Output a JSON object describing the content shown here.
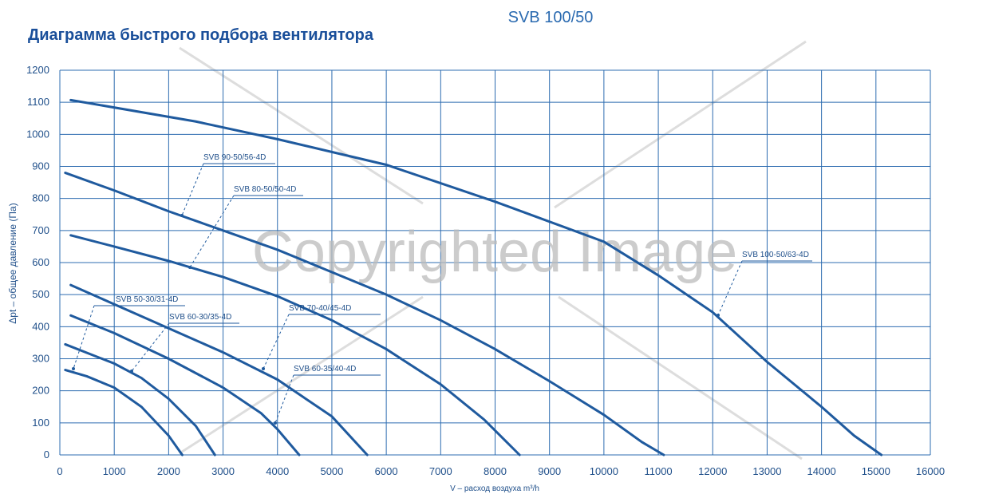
{
  "chart_data": {
    "type": "line",
    "title": "Диаграмма быстрого подбора вентилятора",
    "subtitle": "SVB 100/50",
    "x_label": "V – расход воздуха m³/h",
    "y_label": "Δpt – общее давление (Па)",
    "watermark": "Copyrighted Image",
    "xlim": [
      0,
      16000
    ],
    "xticks": [
      0,
      1000,
      2000,
      3000,
      4000,
      5000,
      6000,
      7000,
      8000,
      9000,
      10000,
      11000,
      12000,
      13000,
      14000,
      15000,
      16000
    ],
    "ylim": [
      0,
      1200
    ],
    "yticks": [
      0,
      100,
      200,
      300,
      400,
      500,
      600,
      700,
      800,
      900,
      1000,
      1100,
      1200
    ],
    "grid": true,
    "series": [
      {
        "name": "SVB 100-50/63-4D",
        "color": "#1f5a9e",
        "x": [
          200,
          2500,
          4000,
          6000,
          8000,
          10000,
          11000,
          12000,
          13000,
          14000,
          14600,
          15100
        ],
        "values": [
          1107,
          1040,
          985,
          905,
          790,
          665,
          560,
          445,
          290,
          150,
          60,
          0
        ]
      },
      {
        "name": "SVB 90-50/56-4D",
        "color": "#1f5a9e",
        "x": [
          100,
          1000,
          2000,
          3000,
          4000,
          5000,
          6000,
          7000,
          8000,
          9000,
          10000,
          10700,
          11100
        ],
        "values": [
          880,
          825,
          760,
          700,
          640,
          570,
          500,
          420,
          330,
          230,
          125,
          40,
          0
        ]
      },
      {
        "name": "SVB 80-50/50-4D",
        "color": "#1f5a9e",
        "x": [
          200,
          1000,
          2000,
          3000,
          4000,
          5000,
          6000,
          7000,
          7800,
          8450
        ],
        "values": [
          685,
          650,
          605,
          555,
          495,
          420,
          330,
          220,
          110,
          0
        ]
      },
      {
        "name": "SVB 70-40/45-4D",
        "color": "#1f5a9e",
        "x": [
          200,
          1000,
          2000,
          3000,
          4000,
          5000,
          5650
        ],
        "values": [
          530,
          470,
          395,
          320,
          235,
          120,
          0
        ]
      },
      {
        "name": "SVB 60-35/40-4D",
        "color": "#1f5a9e",
        "x": [
          200,
          1000,
          2000,
          3000,
          3700,
          4000,
          4400
        ],
        "values": [
          435,
          380,
          300,
          210,
          130,
          80,
          0
        ]
      },
      {
        "name": "SVB 60-30/35-4D",
        "color": "#1f5a9e",
        "x": [
          100,
          1000,
          1500,
          2000,
          2500,
          2850
        ],
        "values": [
          345,
          285,
          240,
          175,
          90,
          0
        ]
      },
      {
        "name": "SVB 50-30/31-4D",
        "color": "#1f5a9e",
        "x": [
          100,
          500,
          1000,
          1500,
          2000,
          2250
        ],
        "values": [
          265,
          245,
          210,
          150,
          60,
          0
        ]
      }
    ]
  }
}
